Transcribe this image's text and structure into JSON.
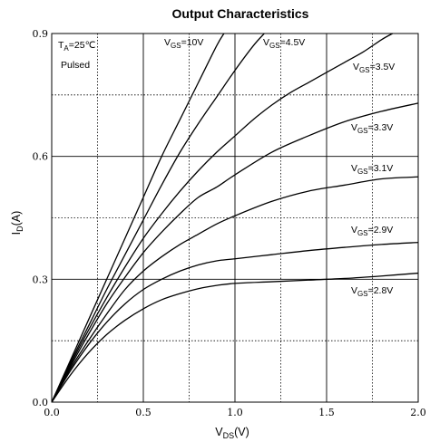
{
  "chart_data": {
    "type": "line",
    "title": "Output Characteristics",
    "xlabel": {
      "main": "V",
      "sub": "DS",
      "unit": "(V)"
    },
    "ylabel": {
      "main": "I",
      "sub": "D",
      "unit": "(A)"
    },
    "xlim": [
      0,
      2.0
    ],
    "ylim": [
      0,
      0.9
    ],
    "x_ticks": [
      0,
      0.5,
      1.0,
      1.5,
      2.0
    ],
    "x_tick_labels": [
      "0.0",
      "0.5",
      "1.0",
      "1.5",
      "2.0"
    ],
    "y_ticks": [
      0,
      0.3,
      0.6,
      0.9
    ],
    "y_tick_labels": [
      "0.0",
      "0.3",
      "0.6",
      "0.9"
    ],
    "minor_grid_x": [
      0.25,
      0.75,
      1.25,
      1.75
    ],
    "minor_grid_y": [
      0.15,
      0.45,
      0.75
    ],
    "grid": true,
    "conditions": {
      "ta": {
        "main": "T",
        "sub": "A",
        "rest": "=25℃"
      },
      "mode": "Pulsed"
    },
    "series": [
      {
        "label": {
          "main": "V",
          "sub": "GS",
          "rest": "=10V"
        },
        "x": [
          0,
          0.1,
          0.2,
          0.3,
          0.4,
          0.5,
          0.6,
          0.7,
          0.8,
          0.9,
          0.94
        ],
        "y": [
          0,
          0.1,
          0.2,
          0.3,
          0.4,
          0.5,
          0.6,
          0.69,
          0.78,
          0.87,
          0.9
        ]
      },
      {
        "label": {
          "main": "V",
          "sub": "GS",
          "rest": "=4.5V"
        },
        "x": [
          0,
          0.1,
          0.2,
          0.3,
          0.4,
          0.5,
          0.6,
          0.7,
          0.8,
          0.9,
          1.0,
          1.1,
          1.16
        ],
        "y": [
          0,
          0.095,
          0.185,
          0.275,
          0.36,
          0.445,
          0.53,
          0.61,
          0.68,
          0.745,
          0.81,
          0.87,
          0.9
        ]
      },
      {
        "label": {
          "main": "V",
          "sub": "GS",
          "rest": "=3.5V"
        },
        "x": [
          0,
          0.1,
          0.2,
          0.3,
          0.4,
          0.5,
          0.6,
          0.7,
          0.8,
          0.9,
          1.0,
          1.1,
          1.2,
          1.3,
          1.4,
          1.5,
          1.6,
          1.7,
          1.8,
          1.86
        ],
        "y": [
          0,
          0.09,
          0.175,
          0.255,
          0.33,
          0.4,
          0.46,
          0.515,
          0.565,
          0.61,
          0.65,
          0.69,
          0.725,
          0.755,
          0.78,
          0.805,
          0.83,
          0.855,
          0.885,
          0.9
        ]
      },
      {
        "label": {
          "main": "V",
          "sub": "GS",
          "rest": "=3.3V"
        },
        "x": [
          0,
          0.1,
          0.2,
          0.3,
          0.4,
          0.5,
          0.6,
          0.7,
          0.8,
          0.9,
          1.0,
          1.2,
          1.4,
          1.6,
          1.8,
          2.0
        ],
        "y": [
          0,
          0.085,
          0.165,
          0.24,
          0.305,
          0.365,
          0.415,
          0.46,
          0.5,
          0.525,
          0.555,
          0.61,
          0.65,
          0.685,
          0.71,
          0.73
        ]
      },
      {
        "label": {
          "main": "V",
          "sub": "GS",
          "rest": "=3.1V"
        },
        "x": [
          0,
          0.1,
          0.2,
          0.3,
          0.4,
          0.5,
          0.6,
          0.7,
          0.8,
          0.9,
          1.0,
          1.2,
          1.4,
          1.6,
          1.8,
          2.0
        ],
        "y": [
          0,
          0.08,
          0.15,
          0.215,
          0.275,
          0.32,
          0.355,
          0.385,
          0.41,
          0.435,
          0.455,
          0.49,
          0.515,
          0.53,
          0.545,
          0.55
        ]
      },
      {
        "label": {
          "main": "V",
          "sub": "GS",
          "rest": "=2.9V"
        },
        "x": [
          0,
          0.1,
          0.2,
          0.3,
          0.4,
          0.5,
          0.6,
          0.7,
          0.8,
          0.9,
          1.0,
          1.2,
          1.4,
          1.6,
          1.8,
          2.0
        ],
        "y": [
          0,
          0.075,
          0.14,
          0.195,
          0.24,
          0.275,
          0.3,
          0.32,
          0.335,
          0.345,
          0.35,
          0.36,
          0.37,
          0.378,
          0.385,
          0.39
        ]
      },
      {
        "label": {
          "main": "V",
          "sub": "GS",
          "rest": "=2.8V"
        },
        "x": [
          0,
          0.1,
          0.2,
          0.3,
          0.4,
          0.5,
          0.6,
          0.7,
          0.8,
          0.9,
          1.0,
          1.2,
          1.4,
          1.6,
          1.8,
          2.0
        ],
        "y": [
          0,
          0.065,
          0.12,
          0.165,
          0.2,
          0.228,
          0.25,
          0.265,
          0.277,
          0.285,
          0.29,
          0.294,
          0.298,
          0.302,
          0.308,
          0.315
        ]
      }
    ]
  }
}
